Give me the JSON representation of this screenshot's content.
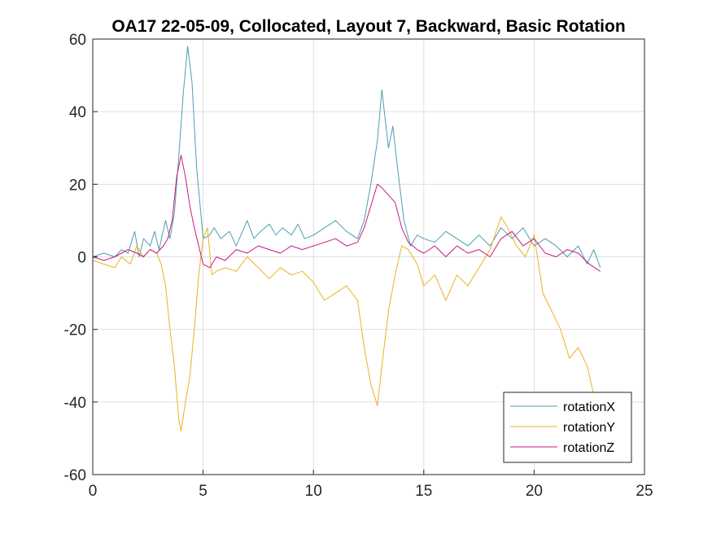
{
  "chart_data": {
    "type": "line",
    "title": "OA17 22-05-09, Collocated, Layout 7, Backward, Basic Rotation",
    "xlabel": "",
    "ylabel": "",
    "xlim": [
      0,
      25
    ],
    "ylim": [
      -60,
      60
    ],
    "xticks": [
      0,
      5,
      10,
      15,
      20,
      25
    ],
    "yticks": [
      -60,
      -40,
      -20,
      0,
      20,
      40,
      60
    ],
    "xtick_labels": [
      "0",
      "5",
      "10",
      "15",
      "20",
      "25"
    ],
    "ytick_labels": [
      "-60",
      "-40",
      "-20",
      "0",
      "20",
      "40",
      "60"
    ],
    "grid": true,
    "legend_position": "bottom-right",
    "series": [
      {
        "name": "rotationX",
        "color": "#4b9fb0",
        "x": [
          0,
          0.5,
          1,
          1.3,
          1.6,
          1.9,
          2.1,
          2.3,
          2.6,
          2.8,
          3.0,
          3.3,
          3.5,
          3.7,
          3.9,
          4.1,
          4.3,
          4.5,
          4.7,
          5.0,
          5.3,
          5.5,
          5.8,
          6.2,
          6.5,
          7.0,
          7.3,
          7.6,
          8.0,
          8.3,
          8.6,
          9.0,
          9.3,
          9.6,
          10.0,
          10.5,
          11.0,
          11.5,
          12.0,
          12.3,
          12.6,
          12.9,
          13.1,
          13.4,
          13.6,
          13.8,
          14.1,
          14.4,
          14.7,
          15.0,
          15.5,
          16.0,
          16.5,
          17.0,
          17.5,
          18.0,
          18.5,
          19.0,
          19.5,
          20.0,
          20.5,
          21.0,
          21.5,
          22.0,
          22.4,
          22.7,
          23.0
        ],
        "y": [
          0,
          1,
          0,
          2,
          1,
          7,
          0,
          5,
          3,
          7,
          2,
          10,
          5,
          12,
          28,
          45,
          58,
          48,
          25,
          5,
          6,
          8,
          5,
          7,
          3,
          10,
          5,
          7,
          9,
          6,
          8,
          6,
          9,
          5,
          6,
          8,
          10,
          7,
          5,
          10,
          20,
          32,
          46,
          30,
          36,
          25,
          10,
          3,
          6,
          5,
          4,
          7,
          5,
          3,
          6,
          3,
          8,
          5,
          8,
          3,
          5,
          3,
          0,
          3,
          -2,
          2,
          -3
        ]
      },
      {
        "name": "rotationY",
        "color": "#edb120",
        "x": [
          0,
          0.5,
          1,
          1.3,
          1.7,
          2.0,
          2.3,
          2.6,
          2.9,
          3.1,
          3.3,
          3.5,
          3.7,
          3.9,
          4.0,
          4.2,
          4.4,
          4.6,
          4.8,
          5.0,
          5.2,
          5.4,
          5.6,
          6.0,
          6.5,
          7.0,
          7.5,
          8.0,
          8.5,
          9.0,
          9.5,
          10.0,
          10.5,
          11.0,
          11.5,
          12.0,
          12.3,
          12.6,
          12.9,
          13.1,
          13.4,
          13.7,
          14.0,
          14.3,
          14.7,
          15.0,
          15.5,
          16.0,
          16.5,
          17.0,
          17.5,
          18.0,
          18.5,
          18.8,
          19.2,
          19.6,
          20.0,
          20.4,
          20.8,
          21.2,
          21.6,
          22.0,
          22.4,
          22.7,
          23.0
        ],
        "y": [
          -1,
          -2,
          -3,
          0,
          -2,
          3,
          0,
          2,
          1,
          -2,
          -8,
          -20,
          -30,
          -45,
          -48,
          -40,
          -33,
          -20,
          -5,
          5,
          8,
          -5,
          -4,
          -3,
          -4,
          0,
          -3,
          -6,
          -3,
          -5,
          -4,
          -7,
          -12,
          -10,
          -8,
          -12,
          -25,
          -35,
          -41,
          -30,
          -15,
          -5,
          3,
          2,
          -2,
          -8,
          -5,
          -12,
          -5,
          -8,
          -3,
          2,
          11,
          8,
          3,
          0,
          6,
          -10,
          -15,
          -20,
          -28,
          -25,
          -30,
          -38,
          -40
        ]
      },
      {
        "name": "rotationZ",
        "color": "#cc1780",
        "x": [
          0,
          0.5,
          1,
          1.3,
          1.6,
          2.0,
          2.3,
          2.6,
          2.9,
          3.2,
          3.4,
          3.6,
          3.8,
          4.0,
          4.2,
          4.4,
          4.6,
          4.8,
          5.0,
          5.3,
          5.6,
          6.0,
          6.5,
          7.0,
          7.5,
          8.0,
          8.5,
          9.0,
          9.5,
          10.0,
          10.5,
          11.0,
          11.5,
          12.0,
          12.3,
          12.6,
          12.9,
          13.1,
          13.4,
          13.7,
          14.0,
          14.3,
          14.7,
          15.0,
          15.5,
          16.0,
          16.5,
          17.0,
          17.5,
          18.0,
          18.5,
          19.0,
          19.5,
          20.0,
          20.5,
          21.0,
          21.5,
          22.0,
          22.5,
          23.0
        ],
        "y": [
          0,
          -1,
          0,
          1,
          2,
          1,
          0,
          2,
          1,
          3,
          5,
          10,
          22,
          28,
          22,
          14,
          8,
          3,
          -2,
          -3,
          0,
          -1,
          2,
          1,
          3,
          2,
          1,
          3,
          2,
          3,
          4,
          5,
          3,
          4,
          8,
          14,
          20,
          19,
          17,
          15,
          8,
          4,
          2,
          1,
          3,
          0,
          3,
          1,
          2,
          0,
          5,
          7,
          3,
          5,
          1,
          0,
          2,
          1,
          -2,
          -4
        ]
      }
    ]
  }
}
